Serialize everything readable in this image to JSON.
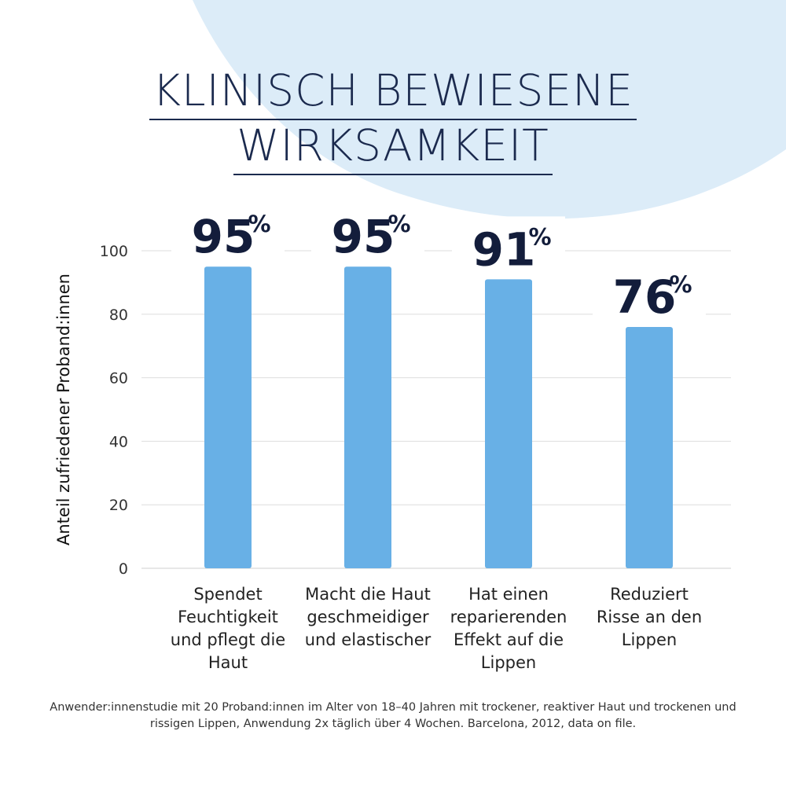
{
  "title": {
    "line1": "KLINISCH BEWIESENE",
    "line2": "WIRKSAMKEIT"
  },
  "colors": {
    "background_blob": "#dcecf8",
    "bar": "#68b0e6",
    "title": "#1b2a4e",
    "value_label": "#131d3b",
    "grid": "#dddddd"
  },
  "chart_data": {
    "type": "bar",
    "categories": [
      "Spendet Feuchtigkeit und pflegt die Haut",
      "Macht die Haut geschmeidiger und elastischer",
      "Hat einen reparierenden Effekt auf die Lippen",
      "Reduziert Risse an den Lippen"
    ],
    "category_lines": [
      [
        "Spendet",
        "Feuchtigkeit",
        "und pflegt die",
        "Haut"
      ],
      [
        "Macht die Haut",
        "geschmeidiger",
        "und elastischer"
      ],
      [
        "Hat einen",
        "reparierenden",
        "Effekt auf die",
        "Lippen"
      ],
      [
        "Reduziert",
        "Risse an den",
        "Lippen"
      ]
    ],
    "values": [
      95,
      95,
      91,
      76
    ],
    "value_labels": [
      "95",
      "95",
      "91",
      "76"
    ],
    "value_unit": "%",
    "ylabel": "Anteil zufriedener Proband:innen",
    "ylim": [
      0,
      100
    ],
    "yticks": [
      0,
      20,
      40,
      60,
      80,
      100
    ],
    "grid": true
  },
  "footnote": "Anwender:innenstudie mit 20 Proband:innen im Alter von 18–40 Jahren mit trockener, reaktiver Haut und trockenen und rissigen Lippen, Anwendung 2x täglich über 4 Wochen. Barcelona, 2012, data on file."
}
